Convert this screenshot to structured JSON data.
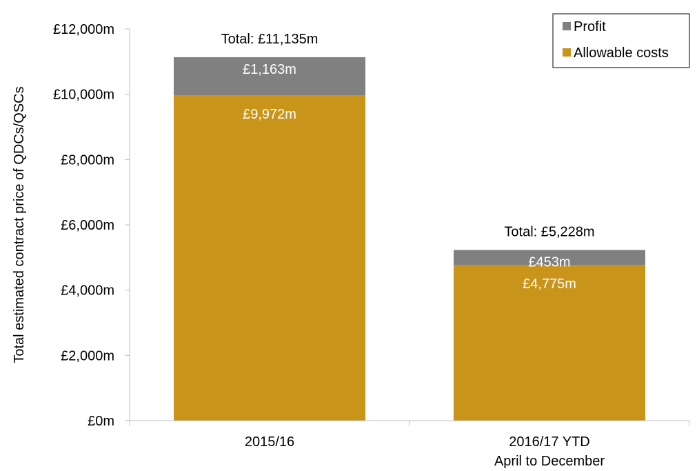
{
  "chart_data": {
    "type": "bar",
    "stacked": true,
    "categories": [
      "2015/16",
      "2016/17 YTD\nApril to December"
    ],
    "series": [
      {
        "name": "Allowable costs",
        "values": [
          9972,
          4775
        ],
        "labels": [
          "£9,972m",
          "£4,775m"
        ],
        "color": "#c8951a"
      },
      {
        "name": "Profit",
        "values": [
          1163,
          453
        ],
        "labels": [
          "£1,163m",
          "£453m"
        ],
        "color": "#808080"
      }
    ],
    "totals": [
      "Total: £11,135m",
      "Total: £5,228m"
    ],
    "ylabel": "Total estimated contract price of QDCs/QSCs",
    "xlabel": "",
    "ylim": [
      0,
      12000
    ],
    "yticks": [
      0,
      2000,
      4000,
      6000,
      8000,
      10000,
      12000
    ],
    "ytick_labels": [
      "£0m",
      "£2,000m",
      "£4,000m",
      "£6,000m",
      "£8,000m",
      "£10,000m",
      "£12,000m"
    ],
    "grid": false,
    "legend": {
      "position": "top-right",
      "entries": [
        "Profit",
        "Allowable costs"
      ]
    }
  }
}
